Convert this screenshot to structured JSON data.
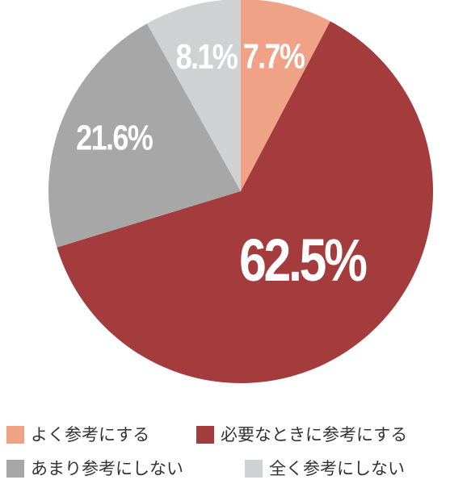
{
  "chart_data": {
    "type": "pie",
    "categories": [
      "よく参考にする",
      "必要なときに参考にする",
      "あまり参考にしない",
      "全く参考にしない"
    ],
    "values": [
      7.7,
      62.5,
      21.6,
      8.1
    ],
    "value_labels": [
      "7.7%",
      "62.5%",
      "21.6%",
      "8.1%"
    ],
    "colors": [
      "#f0a286",
      "#a43c3d",
      "#a7a7a7",
      "#d0d1d3"
    ]
  }
}
